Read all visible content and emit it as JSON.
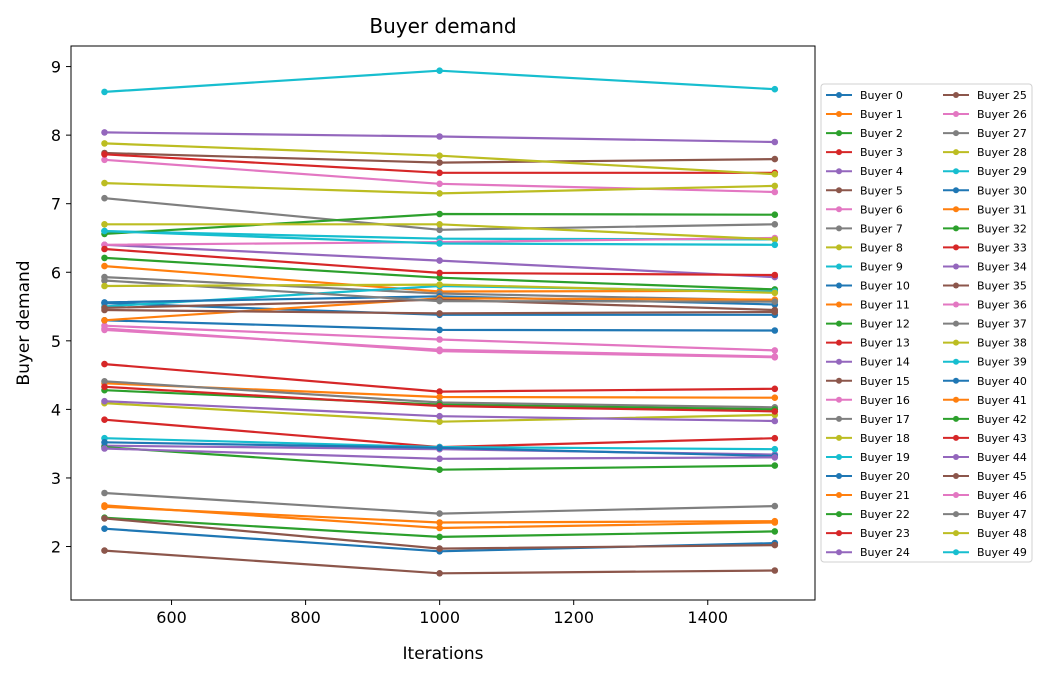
{
  "chart_data": {
    "type": "line",
    "title": "Buyer demand",
    "xlabel": "Iterations",
    "ylabel": "Buyer demand",
    "xlim": [
      450,
      1560
    ],
    "ylim": [
      1.22,
      9.3
    ],
    "xticks": [
      600,
      800,
      1000,
      1200,
      1400
    ],
    "yticks": [
      2,
      3,
      4,
      5,
      6,
      7,
      8,
      9
    ],
    "grid": false,
    "legend_position": "right",
    "legend_columns": 2,
    "x": [
      500,
      1000,
      1500
    ],
    "series": [
      {
        "name": "Buyer 0",
        "color": "#1f77b4",
        "values": [
          2.26,
          1.93,
          2.05
        ]
      },
      {
        "name": "Buyer 1",
        "color": "#ff7f0e",
        "values": [
          2.6,
          2.27,
          2.35
        ]
      },
      {
        "name": "Buyer 2",
        "color": "#2ca02c",
        "values": [
          2.42,
          2.14,
          2.22
        ]
      },
      {
        "name": "Buyer 3",
        "color": "#d62728",
        "values": [
          3.85,
          3.45,
          3.58
        ]
      },
      {
        "name": "Buyer 4",
        "color": "#9467bd",
        "values": [
          6.4,
          6.17,
          5.93
        ]
      },
      {
        "name": "Buyer 5",
        "color": "#8c564b",
        "values": [
          1.94,
          1.61,
          1.65
        ]
      },
      {
        "name": "Buyer 6",
        "color": "#e377c2",
        "values": [
          5.22,
          5.02,
          4.86
        ]
      },
      {
        "name": "Buyer 7",
        "color": "#7f7f7f",
        "values": [
          7.08,
          6.62,
          6.7
        ]
      },
      {
        "name": "Buyer 8",
        "color": "#bcbd22",
        "values": [
          4.09,
          3.82,
          3.92
        ]
      },
      {
        "name": "Buyer 9",
        "color": "#17becf",
        "values": [
          6.6,
          6.49,
          6.48
        ]
      },
      {
        "name": "Buyer 10",
        "color": "#1f77b4",
        "values": [
          5.55,
          5.38,
          5.38
        ]
      },
      {
        "name": "Buyer 11",
        "color": "#ff7f0e",
        "values": [
          6.09,
          5.72,
          5.73
        ]
      },
      {
        "name": "Buyer 12",
        "color": "#2ca02c",
        "values": [
          6.21,
          5.92,
          5.75
        ]
      },
      {
        "name": "Buyer 13",
        "color": "#d62728",
        "values": [
          4.66,
          4.26,
          4.3
        ]
      },
      {
        "name": "Buyer 14",
        "color": "#9467bd",
        "values": [
          3.47,
          3.42,
          3.34
        ]
      },
      {
        "name": "Buyer 15",
        "color": "#8c564b",
        "values": [
          7.74,
          7.6,
          7.65
        ]
      },
      {
        "name": "Buyer 16",
        "color": "#e377c2",
        "values": [
          7.64,
          7.29,
          7.17
        ]
      },
      {
        "name": "Buyer 17",
        "color": "#7f7f7f",
        "values": [
          5.93,
          5.69,
          5.59
        ]
      },
      {
        "name": "Buyer 18",
        "color": "#bcbd22",
        "values": [
          7.3,
          7.15,
          7.26
        ]
      },
      {
        "name": "Buyer 19",
        "color": "#17becf",
        "values": [
          3.58,
          3.45,
          3.42
        ]
      },
      {
        "name": "Buyer 20",
        "color": "#1f77b4",
        "values": [
          5.3,
          5.16,
          5.15
        ]
      },
      {
        "name": "Buyer 21",
        "color": "#ff7f0e",
        "values": [
          4.38,
          4.18,
          4.17
        ]
      },
      {
        "name": "Buyer 22",
        "color": "#2ca02c",
        "values": [
          3.45,
          3.12,
          3.18
        ]
      },
      {
        "name": "Buyer 23",
        "color": "#d62728",
        "values": [
          7.72,
          7.45,
          7.45
        ]
      },
      {
        "name": "Buyer 24",
        "color": "#9467bd",
        "values": [
          8.04,
          7.98,
          7.9
        ]
      },
      {
        "name": "Buyer 25",
        "color": "#8c564b",
        "values": [
          2.41,
          1.97,
          2.02
        ]
      },
      {
        "name": "Buyer 26",
        "color": "#e377c2",
        "values": [
          6.4,
          6.44,
          6.5
        ]
      },
      {
        "name": "Buyer 27",
        "color": "#7f7f7f",
        "values": [
          2.78,
          2.48,
          2.59
        ]
      },
      {
        "name": "Buyer 28",
        "color": "#bcbd22",
        "values": [
          7.88,
          7.7,
          7.43
        ]
      },
      {
        "name": "Buyer 29",
        "color": "#17becf",
        "values": [
          5.5,
          5.8,
          5.72
        ]
      },
      {
        "name": "Buyer 30",
        "color": "#1f77b4",
        "values": [
          5.56,
          5.65,
          5.53
        ]
      },
      {
        "name": "Buyer 31",
        "color": "#ff7f0e",
        "values": [
          5.3,
          5.62,
          5.6
        ]
      },
      {
        "name": "Buyer 32",
        "color": "#2ca02c",
        "values": [
          6.56,
          6.85,
          6.84
        ]
      },
      {
        "name": "Buyer 33",
        "color": "#d62728",
        "values": [
          6.34,
          5.99,
          5.96
        ]
      },
      {
        "name": "Buyer 34",
        "color": "#9467bd",
        "values": [
          4.12,
          3.9,
          3.83
        ]
      },
      {
        "name": "Buyer 35",
        "color": "#8c564b",
        "values": [
          5.45,
          5.4,
          5.42
        ]
      },
      {
        "name": "Buyer 36",
        "color": "#e377c2",
        "values": [
          5.18,
          4.85,
          4.76
        ]
      },
      {
        "name": "Buyer 37",
        "color": "#7f7f7f",
        "values": [
          4.41,
          4.1,
          4.03
        ]
      },
      {
        "name": "Buyer 38",
        "color": "#bcbd22",
        "values": [
          6.7,
          6.7,
          6.48
        ]
      },
      {
        "name": "Buyer 39",
        "color": "#17becf",
        "values": [
          8.63,
          8.94,
          8.67
        ]
      },
      {
        "name": "Buyer 40",
        "color": "#1f77b4",
        "values": [
          3.52,
          3.44,
          3.32
        ]
      },
      {
        "name": "Buyer 41",
        "color": "#ff7f0e",
        "values": [
          2.58,
          2.35,
          2.37
        ]
      },
      {
        "name": "Buyer 42",
        "color": "#2ca02c",
        "values": [
          4.28,
          4.07,
          4.0
        ]
      },
      {
        "name": "Buyer 43",
        "color": "#d62728",
        "values": [
          4.33,
          4.05,
          3.97
        ]
      },
      {
        "name": "Buyer 44",
        "color": "#9467bd",
        "values": [
          3.43,
          3.28,
          3.3
        ]
      },
      {
        "name": "Buyer 45",
        "color": "#8c564b",
        "values": [
          5.48,
          5.6,
          5.45
        ]
      },
      {
        "name": "Buyer 46",
        "color": "#e377c2",
        "values": [
          5.16,
          4.87,
          4.77
        ]
      },
      {
        "name": "Buyer 47",
        "color": "#7f7f7f",
        "values": [
          5.88,
          5.58,
          5.57
        ]
      },
      {
        "name": "Buyer 48",
        "color": "#bcbd22",
        "values": [
          5.8,
          5.82,
          5.7
        ]
      },
      {
        "name": "Buyer 49",
        "color": "#17becf",
        "values": [
          6.6,
          6.42,
          6.4
        ]
      }
    ]
  }
}
